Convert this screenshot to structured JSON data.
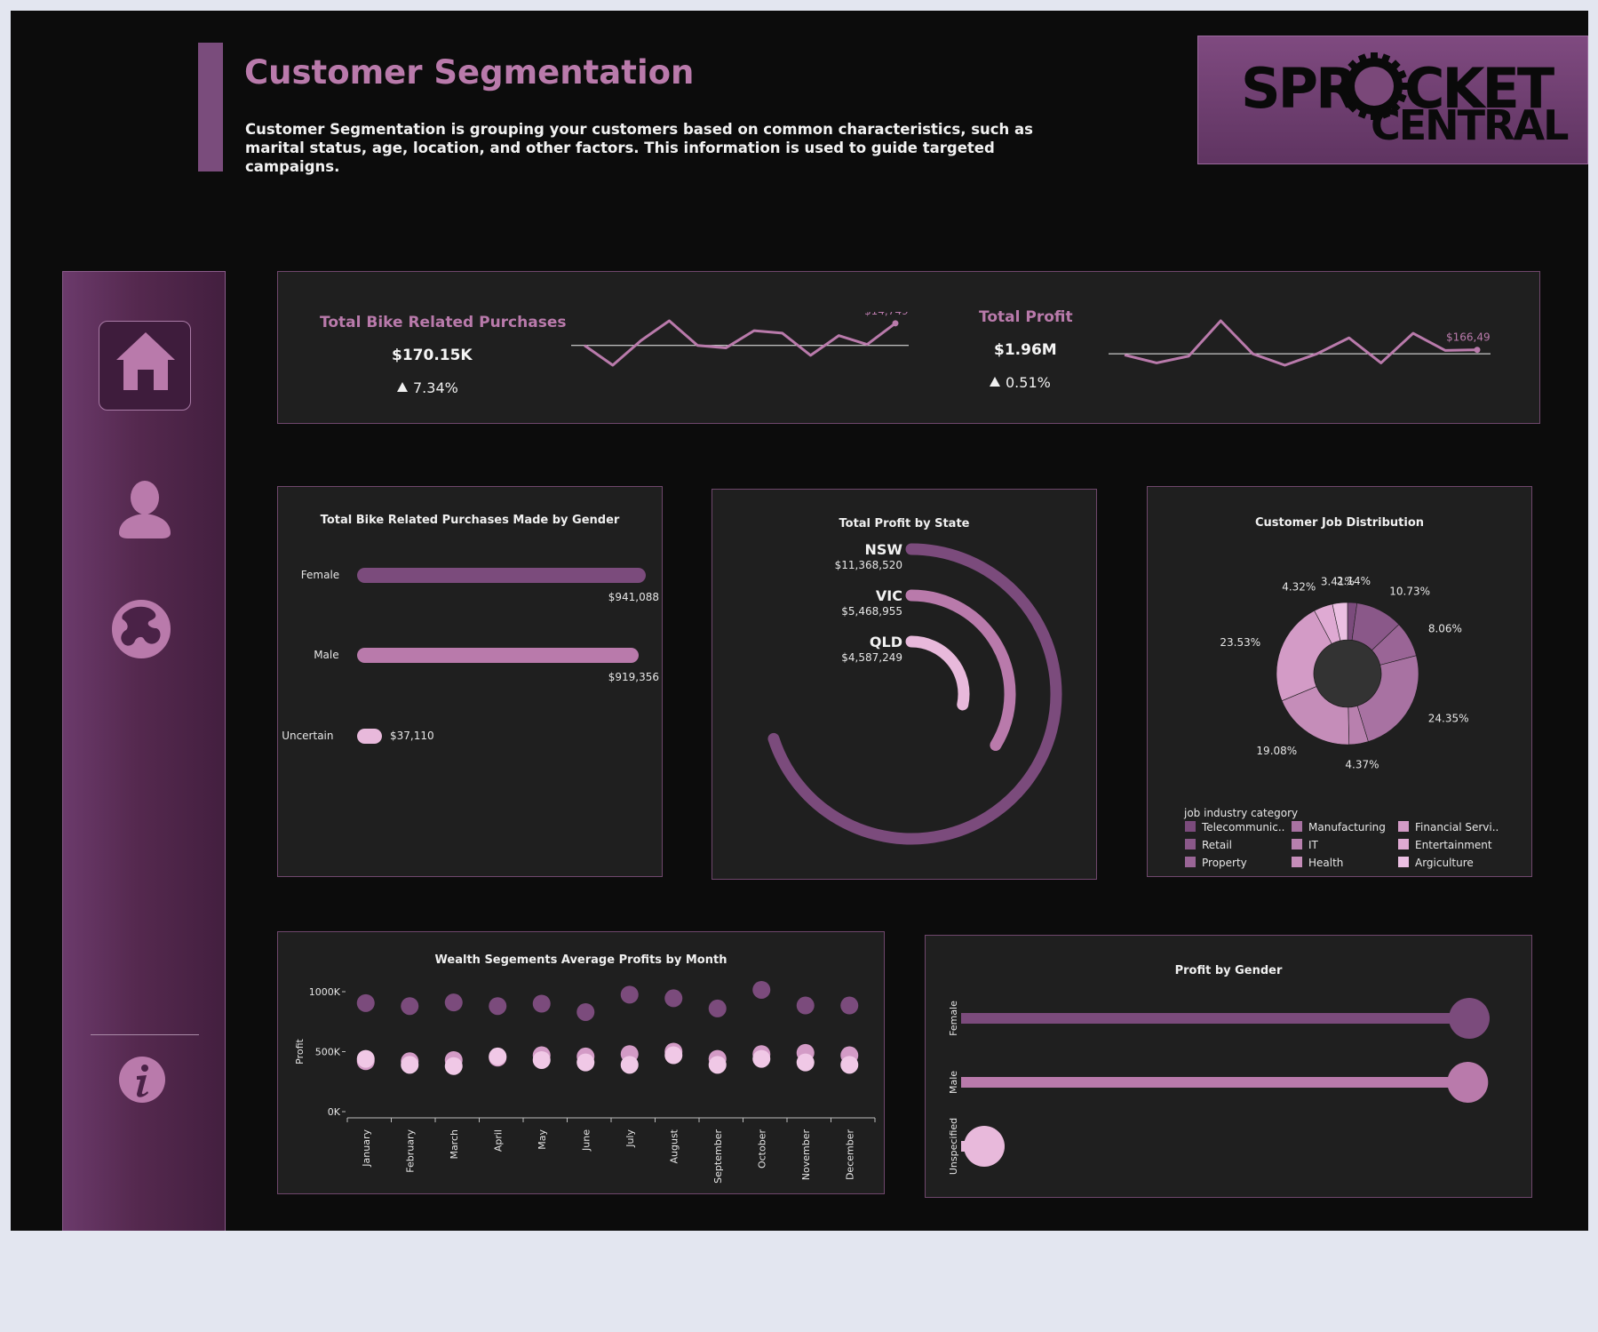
{
  "header": {
    "title": "Customer Segmentation",
    "description": "Customer Segmentation is grouping your customers based on common characteristics, such as marital status, age, location, and other factors. This information is used to guide targeted campaigns.",
    "logo_line1": "SPR",
    "logo_line1_b": "CKET",
    "logo_line2": "CENTRAL"
  },
  "colors": {
    "accent": "#7a4c7c",
    "title": "#b97aab",
    "dark_purple": "#7b4b7c",
    "mid_purple": "#b97aab",
    "light_pink": "#e8b9db"
  },
  "sidebar": {
    "items": [
      {
        "icon": "home-icon"
      },
      {
        "icon": "user-icon"
      },
      {
        "icon": "globe-icon"
      },
      {
        "icon": "info-icon"
      }
    ]
  },
  "kpis": {
    "purchases": {
      "label": "Total Bike Related Purchases",
      "value": "$170.15K",
      "change": "7.34%",
      "last_label": "$14,749"
    },
    "profit": {
      "label": "Total Profit",
      "value": "$1.96M",
      "change": "0.51%",
      "last_label": "$166,493"
    }
  },
  "chart_data": [
    {
      "type": "line",
      "id": "purchases-trend",
      "values": [
        14300,
        13900,
        14400,
        14800,
        14300,
        14250,
        14600,
        14550,
        14100,
        14500,
        14320,
        14749
      ],
      "reference": 14300,
      "last_label": "$14,749"
    },
    {
      "type": "line",
      "id": "profit-trend",
      "values": [
        162000,
        155000,
        161000,
        192000,
        163000,
        153000,
        163000,
        177000,
        155000,
        181000,
        166000,
        166493
      ],
      "reference": 163000,
      "last_label": "$166,493"
    },
    {
      "type": "bar",
      "title": "Total Bike Related Purchases Made by Gender",
      "categories": [
        "Female",
        "Male",
        "Uncertain"
      ],
      "values": [
        941088,
        919356,
        37110
      ],
      "labels": [
        "$941,088",
        "$919,356",
        "$37,110"
      ]
    },
    {
      "type": "radial-bar",
      "title": "Total Profit by State",
      "categories": [
        "NSW",
        "VIC",
        "QLD"
      ],
      "values": [
        11368520,
        5468955,
        4587249
      ],
      "labels": [
        "$11,368,520",
        "$5,468,955",
        "$4,587,249"
      ]
    },
    {
      "type": "pie",
      "title": "Customer Job Distribution",
      "legend_title": "job industry category",
      "slices": [
        {
          "name": "Telecommunic..",
          "value": 2.14,
          "label": "2.14%",
          "color": "#7b4b7c"
        },
        {
          "name": "Retail",
          "value": 10.73,
          "label": "10.73%",
          "color": "#8a5889"
        },
        {
          "name": "Property",
          "value": 8.06,
          "label": "8.06%",
          "color": "#9a6596"
        },
        {
          "name": "Manufacturing",
          "value": 24.35,
          "label": "24.35%",
          "color": "#a872a2"
        },
        {
          "name": "IT",
          "value": 4.37,
          "label": "4.37%",
          "color": "#b880ae"
        },
        {
          "name": "Health",
          "value": 19.08,
          "label": "19.08%",
          "color": "#c58db9"
        },
        {
          "name": "Financial Servi..",
          "value": 23.53,
          "label": "23.53%",
          "color": "#d39bc6"
        },
        {
          "name": "Entertainment",
          "value": 4.32,
          "label": "4.32%",
          "color": "#dfaad3"
        },
        {
          "name": "Argiculture",
          "value": 3.41,
          "label": "3.41%",
          "color": "#ebbfe2"
        }
      ]
    },
    {
      "type": "scatter",
      "title": "Wealth Segements Average Profits by Month",
      "ylabel": "Profit",
      "ylim": [
        0,
        1000000
      ],
      "yticks": [
        "0K",
        "500K",
        "1000K"
      ],
      "categories": [
        "January",
        "February",
        "March",
        "April",
        "May",
        "June",
        "July",
        "August",
        "September",
        "October",
        "November",
        "December"
      ],
      "series": [
        {
          "values": [
            905000,
            880000,
            910000,
            880000,
            900000,
            830000,
            975000,
            945000,
            860000,
            1015000,
            885000,
            885000
          ],
          "color": "#7b4b7c"
        },
        {
          "values": [
            420000,
            420000,
            430000,
            450000,
            470000,
            460000,
            480000,
            500000,
            440000,
            480000,
            490000,
            470000
          ],
          "color": "#d39bc6"
        },
        {
          "values": [
            440000,
            390000,
            380000,
            460000,
            430000,
            410000,
            390000,
            470000,
            390000,
            440000,
            410000,
            390000
          ],
          "color": "#f0c8e6"
        }
      ]
    },
    {
      "type": "bar",
      "title": "Profit by Gender",
      "categories": [
        "Female",
        "Male",
        "Unspecified"
      ],
      "values": [
        1000,
        997,
        44
      ],
      "colors": [
        "#7b4b7c",
        "#b97aab",
        "#e8b9db"
      ]
    }
  ]
}
